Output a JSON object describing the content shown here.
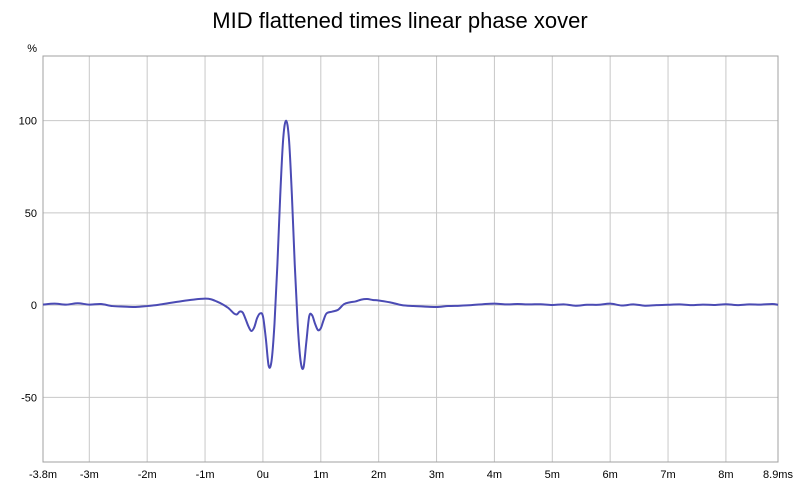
{
  "chart_data": {
    "type": "line",
    "title": "MID flattened times linear phase xover",
    "ylabel": "%",
    "xunit": "ms",
    "xlim": [
      -3.8,
      8.9
    ],
    "ylim": [
      -85,
      135
    ],
    "grid": true,
    "color": "#4b4bb4",
    "x_ticks": [
      {
        "v": -3.8,
        "label": "-3.8m"
      },
      {
        "v": -3,
        "label": "-3m"
      },
      {
        "v": -2,
        "label": "-2m"
      },
      {
        "v": -1,
        "label": "-1m"
      },
      {
        "v": 0,
        "label": "0u"
      },
      {
        "v": 1,
        "label": "1m"
      },
      {
        "v": 2,
        "label": "2m"
      },
      {
        "v": 3,
        "label": "3m"
      },
      {
        "v": 4,
        "label": "4m"
      },
      {
        "v": 5,
        "label": "5m"
      },
      {
        "v": 6,
        "label": "6m"
      },
      {
        "v": 7,
        "label": "7m"
      },
      {
        "v": 8,
        "label": "8m"
      },
      {
        "v": 8.9,
        "label": "8.9ms"
      }
    ],
    "y_ticks": [
      {
        "v": 100,
        "label": "100"
      },
      {
        "v": 50,
        "label": "50"
      },
      {
        "v": 0,
        "label": "0"
      },
      {
        "v": -50,
        "label": "-50"
      }
    ],
    "series": [
      {
        "x": [
          -3.8,
          -3.6,
          -3.4,
          -3.2,
          -3.0,
          -2.8,
          -2.6,
          -2.4,
          -2.2,
          -2.0,
          -1.8,
          -1.6,
          -1.4,
          -1.2,
          -1.0,
          -0.9,
          -0.8,
          -0.7,
          -0.6,
          -0.5,
          -0.45,
          -0.4,
          -0.35,
          -0.3,
          -0.25,
          -0.2,
          -0.15,
          -0.1,
          -0.05,
          0.0,
          0.05,
          0.1,
          0.15,
          0.2,
          0.25,
          0.3,
          0.35,
          0.4,
          0.45,
          0.5,
          0.55,
          0.6,
          0.65,
          0.7,
          0.75,
          0.8,
          0.85,
          0.9,
          0.95,
          1.0,
          1.05,
          1.1,
          1.2,
          1.3,
          1.4,
          1.5,
          1.6,
          1.7,
          1.8,
          1.9,
          2.0,
          2.2,
          2.4,
          2.6,
          2.8,
          3.0,
          3.2,
          3.4,
          3.6,
          3.8,
          4.0,
          4.2,
          4.4,
          4.6,
          4.8,
          5.0,
          5.2,
          5.4,
          5.6,
          5.8,
          6.0,
          6.2,
          6.4,
          6.6,
          6.8,
          7.0,
          7.2,
          7.4,
          7.6,
          7.8,
          8.0,
          8.2,
          8.4,
          8.6,
          8.8,
          8.9
        ],
        "y": [
          0.3,
          0.8,
          0.3,
          1.0,
          0.3,
          0.6,
          -0.5,
          -0.8,
          -1.0,
          -0.5,
          0.2,
          1.2,
          2.2,
          3.0,
          3.5,
          3.2,
          2.0,
          0.5,
          -1.5,
          -4.5,
          -5.0,
          -3.5,
          -4.0,
          -7.5,
          -11.5,
          -14.0,
          -12.0,
          -7.0,
          -4.5,
          -6.0,
          -18.0,
          -33.0,
          -30.0,
          -10.0,
          22.0,
          60.0,
          90.0,
          100.0,
          90.0,
          60.0,
          22.0,
          -10.0,
          -30.0,
          -34.0,
          -20.0,
          -6.0,
          -5.5,
          -10.0,
          -13.5,
          -12.5,
          -8.0,
          -4.5,
          -3.5,
          -2.5,
          0.5,
          1.5,
          2.0,
          3.0,
          3.3,
          2.8,
          2.5,
          1.5,
          0.0,
          -0.5,
          -0.8,
          -1.0,
          -0.5,
          -0.3,
          0.0,
          0.5,
          0.8,
          0.4,
          0.6,
          0.4,
          0.5,
          0.1,
          0.4,
          -0.3,
          0.2,
          0.2,
          0.8,
          -0.2,
          0.4,
          -0.3,
          0.0,
          0.2,
          0.4,
          0.0,
          0.3,
          0.1,
          0.5,
          0.0,
          0.4,
          0.3,
          0.6,
          0.2
        ]
      }
    ]
  }
}
